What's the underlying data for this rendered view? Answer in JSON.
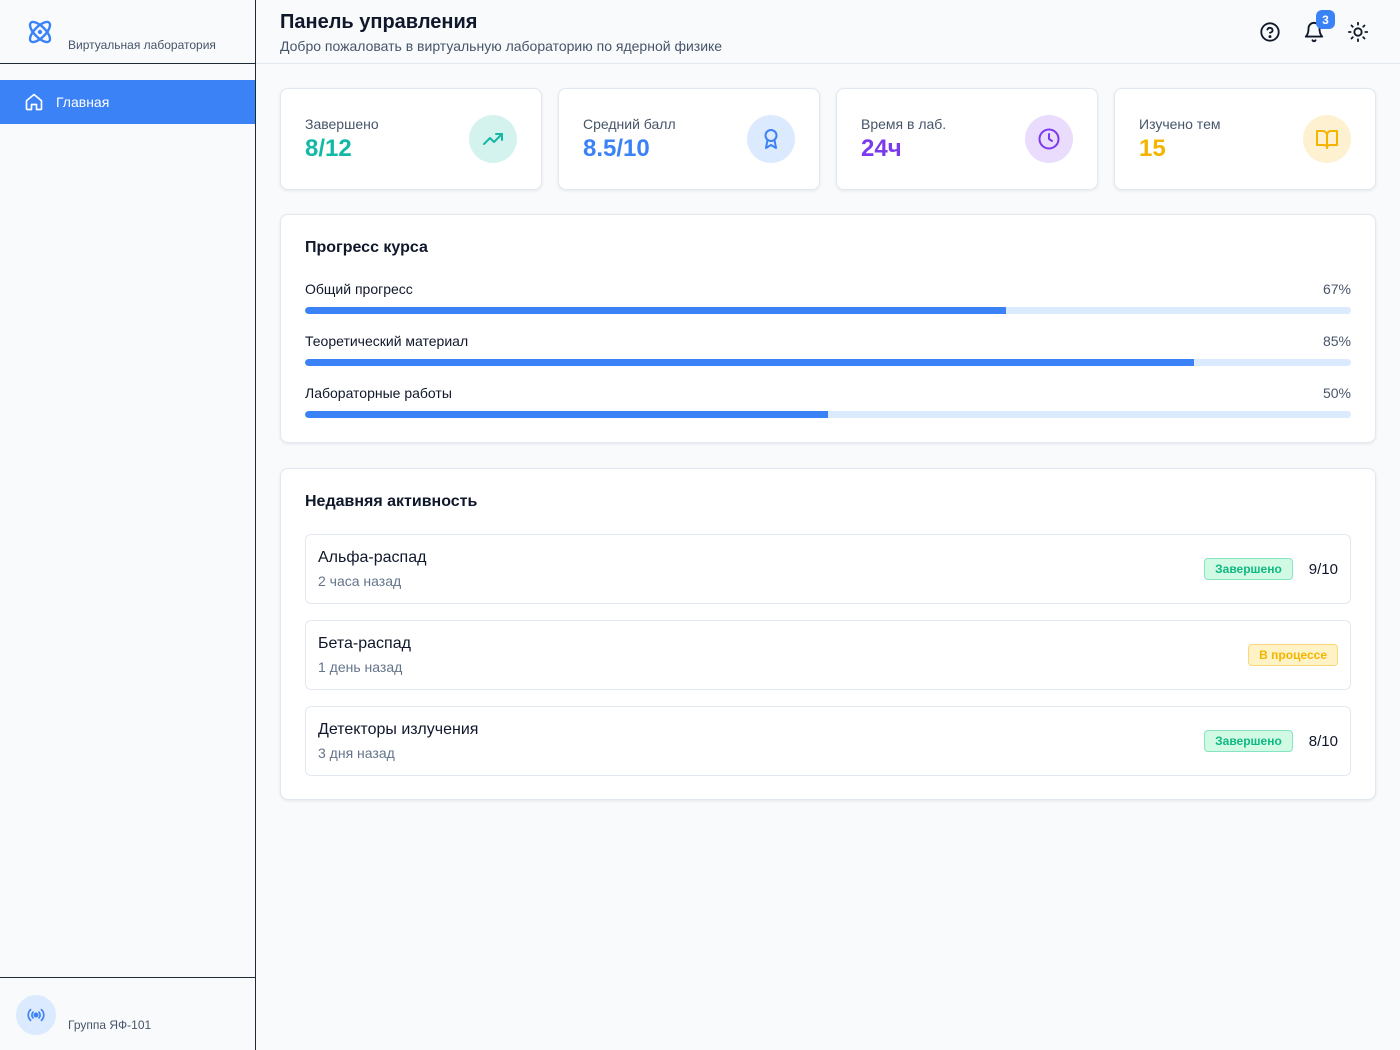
{
  "sidebar": {
    "brand_subtitle": "Виртуальная лаборатория",
    "nav": [
      {
        "label": "Главная",
        "icon": "home-icon",
        "active": true
      }
    ],
    "footer_group": "Группа ЯФ-101"
  },
  "header": {
    "title": "Панель управления",
    "subtitle": "Добро пожаловать в виртуальную лабораторию по ядерной физике",
    "notification_count": "3",
    "icons": [
      "help-icon",
      "bell-icon",
      "sun-icon"
    ]
  },
  "stats": [
    {
      "label": "Завершено",
      "value": "8/12",
      "color": "#14b8a6",
      "bg": "#d5f3ee",
      "icon": "trending-up-icon"
    },
    {
      "label": "Средний балл",
      "value": "8.5/10",
      "color": "#3b82f6",
      "bg": "#dbeafe",
      "icon": "award-icon"
    },
    {
      "label": "Время в лаб.",
      "value": "24ч",
      "color": "#7c3aed",
      "bg": "#e9dcfc",
      "icon": "clock-icon"
    },
    {
      "label": "Изучено тем",
      "value": "15",
      "color": "#f5b400",
      "bg": "#fdf1d2",
      "icon": "book-icon"
    }
  ],
  "progress": {
    "title": "Прогресс курса",
    "items": [
      {
        "label": "Общий прогресс",
        "percent": 67,
        "display": "67%"
      },
      {
        "label": "Теоретический материал",
        "percent": 85,
        "display": "85%"
      },
      {
        "label": "Лабораторные работы",
        "percent": 50,
        "display": "50%"
      }
    ]
  },
  "activity": {
    "title": "Недавняя активность",
    "items": [
      {
        "name": "Альфа-распад",
        "time": "2 часа назад",
        "status": "Завершено",
        "status_type": "done",
        "score": "9/10"
      },
      {
        "name": "Бета-распад",
        "time": "1 день назад",
        "status": "В процессе",
        "status_type": "prog",
        "score": ""
      },
      {
        "name": "Детекторы излучения",
        "time": "3 дня назад",
        "status": "Завершено",
        "status_type": "done",
        "score": "8/10"
      }
    ]
  },
  "colors": {
    "accent": "#3b82f6",
    "success": "#10b981",
    "warning": "#f5b400"
  }
}
